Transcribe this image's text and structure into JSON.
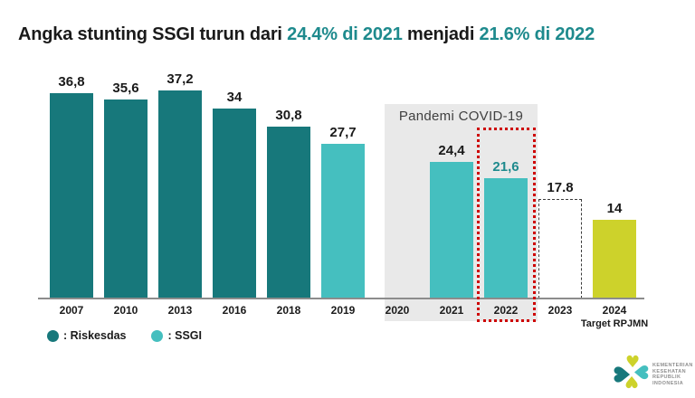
{
  "title": {
    "segments": [
      {
        "text": "Angka stunting SSGI turun dari ",
        "color": "#1a1a1a"
      },
      {
        "text": "24.4% di 2021",
        "color": "#1E8A8D"
      },
      {
        "text": " menjadi ",
        "color": "#1a1a1a"
      },
      {
        "text": "21.6% di 2022",
        "color": "#1E8A8D"
      }
    ]
  },
  "chart_data": {
    "type": "bar",
    "title": "Angka stunting SSGI turun dari 24.4% di 2021 menjadi 21.6% di 2022",
    "xlabel": "",
    "ylabel": "",
    "ylim": [
      0,
      40
    ],
    "grid": false,
    "categories": [
      "2007",
      "2010",
      "2013",
      "2016",
      "2018",
      "2019",
      "2020",
      "2021",
      "2022",
      "2023",
      "2024"
    ],
    "bars": [
      {
        "year": "2007",
        "value": 36.8,
        "label": "36,8",
        "series": "riskesdas"
      },
      {
        "year": "2010",
        "value": 35.6,
        "label": "35,6",
        "series": "riskesdas"
      },
      {
        "year": "2013",
        "value": 37.2,
        "label": "37,2",
        "series": "riskesdas"
      },
      {
        "year": "2016",
        "value": 34,
        "label": "34",
        "series": "riskesdas"
      },
      {
        "year": "2018",
        "value": 30.8,
        "label": "30,8",
        "series": "riskesdas"
      },
      {
        "year": "2019",
        "value": 27.7,
        "label": "27,7",
        "series": "ssgi"
      },
      {
        "year": "2020",
        "value": null,
        "label": "",
        "series": null
      },
      {
        "year": "2021",
        "value": 24.4,
        "label": "24,4",
        "series": "ssgi"
      },
      {
        "year": "2022",
        "value": 21.6,
        "label": "21,6",
        "series": "ssgi",
        "value_label_color": "#1E8A8D",
        "highlighted": true
      },
      {
        "year": "2023",
        "value": 17.8,
        "label": "17.8",
        "series": "projection"
      },
      {
        "year": "2024",
        "value": 14,
        "label": "14",
        "series": "target",
        "sub_label": "Target RPJMN"
      }
    ],
    "annotations": {
      "pandemic": "Pandemi COVID-19",
      "pandemic_years": [
        "2020",
        "2021",
        "2022"
      ],
      "highlight_year": "2022"
    }
  },
  "legend": {
    "items": [
      {
        "label": ": Riskesdas",
        "color": "#17787B"
      },
      {
        "label": ": SSGI",
        "color": "#45BFBF"
      }
    ]
  },
  "logo": {
    "org_lines": [
      "KEMENTERIAN",
      "KESEHATAN",
      "REPUBLIK",
      "INDONESIA"
    ]
  },
  "colors": {
    "riskesdas": "#17787B",
    "ssgi": "#45BFBF",
    "target": "#CDD22B",
    "projection_border": "#3c3c3c",
    "highlight_red": "#CE0202",
    "pandemic_box": "#E9E9E9",
    "title_accent": "#1E8A8D",
    "text": "#1a1a1a",
    "axis": "#8c8c8c"
  }
}
